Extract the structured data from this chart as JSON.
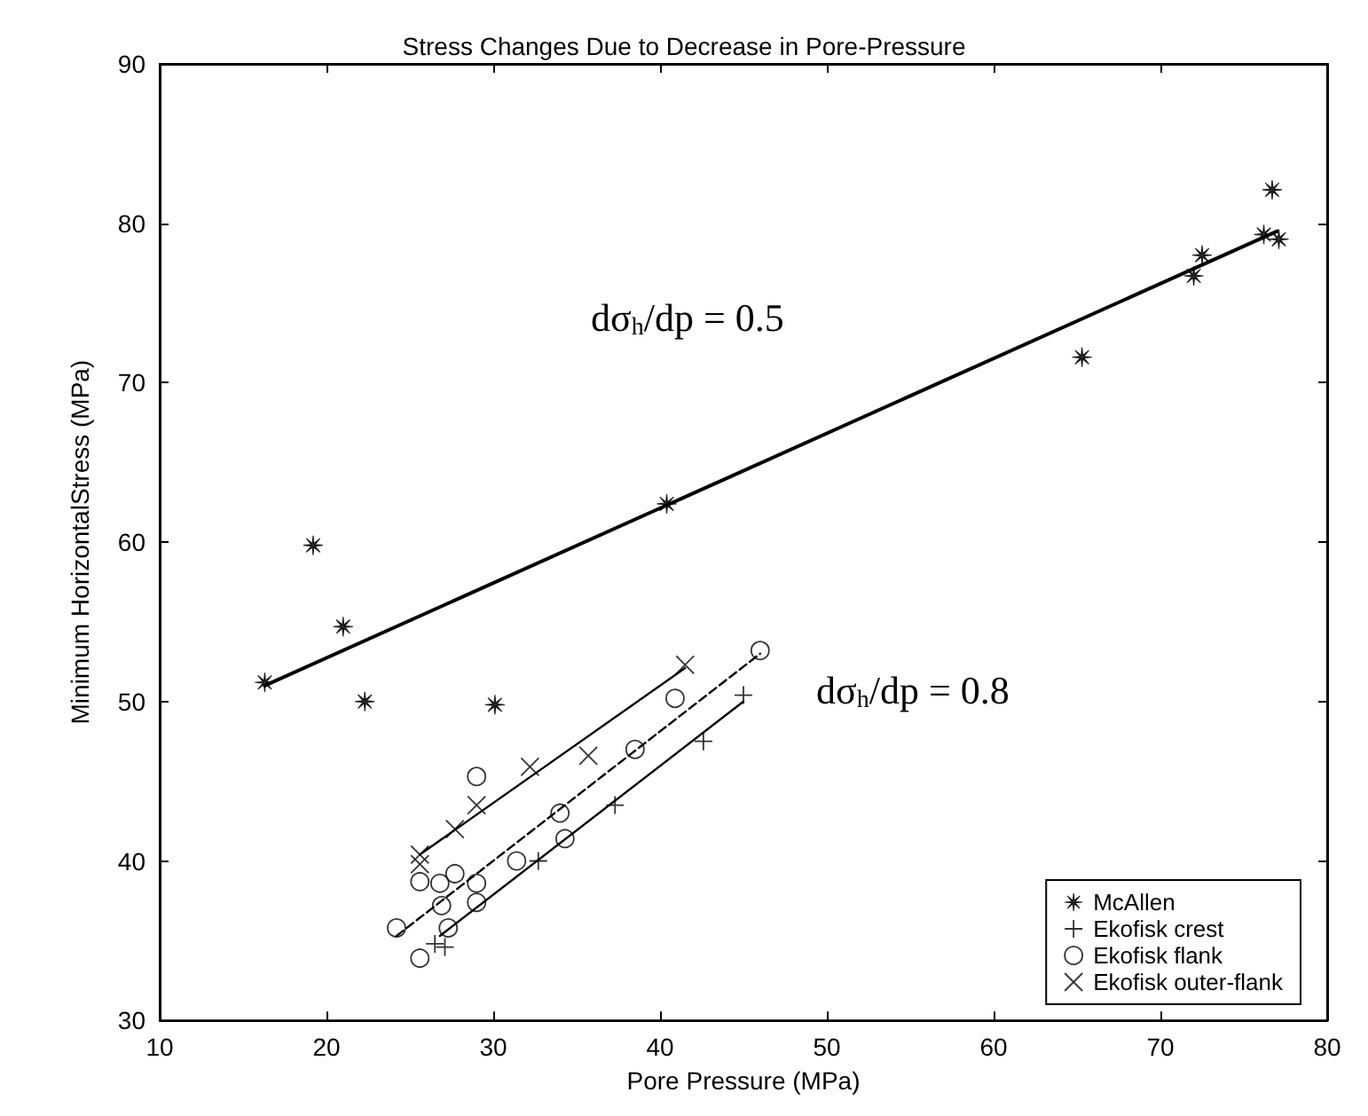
{
  "chart_data": {
    "type": "scatter",
    "title": "Stress Changes Due to Decrease in Pore-Pressure",
    "xlabel": "Pore Pressure (MPa)",
    "ylabel": "Minimum HorizontalStress (MPa)",
    "xlim": [
      10,
      80
    ],
    "ylim": [
      30,
      90
    ],
    "xticks": [
      10,
      20,
      30,
      40,
      50,
      60,
      70,
      80
    ],
    "yticks": [
      30,
      40,
      50,
      60,
      70,
      80,
      90
    ],
    "grid": false,
    "legend": "bottom right",
    "annotations": [
      "dσ$_{h}$/dp = 0.5",
      "dσ$_{h}$/dp = 0.8"
    ],
    "series": [
      {
        "name": "McAllen",
        "color": "#000000",
        "marker": "star",
        "x": [
          16.3,
          19.2,
          21,
          22.3,
          30.1,
          40.4,
          65.3,
          72,
          72.5,
          76.2,
          76.7,
          77.1
        ],
        "values": [
          51.2,
          59.8,
          54.7,
          50,
          49.8,
          62.4,
          71.6,
          76.7,
          78,
          79.3,
          82.1,
          79
        ]
      },
      {
        "name": "Ekofisk crest",
        "color": "#000000",
        "marker": "cross",
        "x": [
          26.5,
          27.1,
          32.7,
          37.3,
          42.6,
          45
        ],
        "values": [
          34.8,
          34.6,
          40,
          43.5,
          47.5,
          50.4
        ]
      },
      {
        "name": "Ekofisk flank",
        "color": "#000000",
        "marker": "circle",
        "x": [
          24.2,
          25.6,
          25.6,
          26.8,
          26.9,
          27.3,
          27.7,
          29,
          29,
          29,
          31.4,
          34,
          34.3,
          38.5,
          40.9,
          46
        ],
        "values": [
          35.8,
          33.9,
          38.7,
          38.6,
          37.2,
          35.8,
          39.2,
          38.6,
          37.4,
          45.3,
          40,
          43,
          41.4,
          47,
          50.2,
          53.2
        ]
      },
      {
        "name": "Ekofisk outer-flank",
        "color": "#000000",
        "marker": "x",
        "x": [
          25.6,
          25.6,
          27.7,
          29,
          32.2,
          35.7,
          41.5
        ],
        "values": [
          39.8,
          40.4,
          42,
          43.5,
          45.9,
          46.6,
          52.3
        ]
      },
      {
        "type": "line",
        "color": "#000000",
        "marker": "none",
        "line_style": "solid",
        "x": [
          16.3,
          77
        ],
        "values": [
          51,
          79.5
        ]
      },
      {
        "type": "line",
        "color": "#000000",
        "marker": "none",
        "line_style": "solid",
        "x": [
          26.8,
          45
        ],
        "values": [
          35.3,
          50
        ]
      },
      {
        "type": "line",
        "color": "#000000",
        "marker": "none",
        "line_style": "dashed",
        "x": [
          24.2,
          46
        ],
        "values": [
          35.3,
          53
        ]
      },
      {
        "type": "line",
        "color": "#000000",
        "marker": "none",
        "line_style": "solid",
        "x": [
          25.6,
          41.5
        ],
        "values": [
          40.4,
          52.1
        ]
      }
    ]
  }
}
